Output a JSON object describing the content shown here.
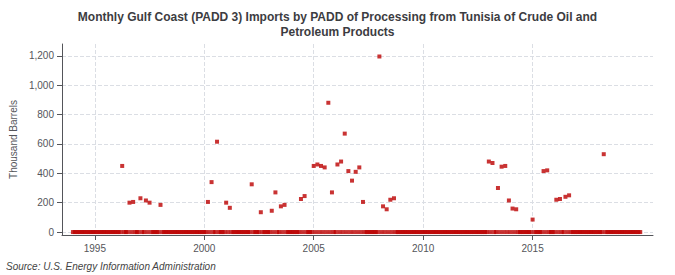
{
  "chart_data": {
    "type": "scatter",
    "title": "Monthly Gulf Coast (PADD 3) Imports by PADD of Processing from Tunisia of Crude Oil and\nPetroleum Products",
    "ylabel": "Thousand Barrels",
    "annotations": [
      "Source: U.S. Energy Information Administration"
    ],
    "color": "#bb0000",
    "marker": "square",
    "grid": true,
    "xlim": [
      1993.5,
      2020.5
    ],
    "ylim": [
      -20,
      1280
    ],
    "xticks": [
      1995,
      2000,
      2005,
      2010,
      2015
    ],
    "yticks": [
      0,
      200,
      400,
      600,
      800,
      {
        "value": 1000,
        "label": "1,000"
      },
      {
        "value": 1200,
        "label": "1,200"
      }
    ],
    "x": [
      1994.0,
      1994.083,
      1994.167,
      1994.25,
      1994.333,
      1994.417,
      1994.5,
      1994.583,
      1994.667,
      1994.75,
      1994.833,
      1994.917,
      1995.0,
      1995.083,
      1995.167,
      1995.25,
      1995.333,
      1995.417,
      1995.5,
      1995.583,
      1995.667,
      1995.75,
      1995.833,
      1995.917,
      1996.0,
      1996.083,
      1996.167,
      1996.25,
      1996.333,
      1996.417,
      1996.5,
      1996.583,
      1996.667,
      1996.75,
      1996.833,
      1996.917,
      1997.0,
      1997.083,
      1997.167,
      1997.25,
      1997.333,
      1997.417,
      1997.5,
      1997.583,
      1997.667,
      1997.75,
      1997.833,
      1997.917,
      1998.0,
      1998.083,
      1998.167,
      1998.25,
      1998.333,
      1998.417,
      1998.5,
      1998.583,
      1998.667,
      1998.75,
      1998.833,
      1998.917,
      1999.0,
      1999.083,
      1999.167,
      1999.25,
      1999.333,
      1999.417,
      1999.5,
      1999.583,
      1999.667,
      1999.75,
      1999.833,
      1999.917,
      2000.0,
      2000.083,
      2000.167,
      2000.25,
      2000.333,
      2000.417,
      2000.5,
      2000.583,
      2000.667,
      2000.75,
      2000.833,
      2000.917,
      2001.0,
      2001.083,
      2001.167,
      2001.25,
      2001.333,
      2001.417,
      2001.5,
      2001.583,
      2001.667,
      2001.75,
      2001.833,
      2001.917,
      2002.0,
      2002.083,
      2002.167,
      2002.25,
      2002.333,
      2002.417,
      2002.5,
      2002.583,
      2002.667,
      2002.75,
      2002.833,
      2002.917,
      2003.0,
      2003.083,
      2003.167,
      2003.25,
      2003.333,
      2003.417,
      2003.5,
      2003.583,
      2003.667,
      2003.75,
      2003.833,
      2003.917,
      2004.0,
      2004.083,
      2004.167,
      2004.25,
      2004.333,
      2004.417,
      2004.5,
      2004.583,
      2004.667,
      2004.75,
      2004.833,
      2004.917,
      2005.0,
      2005.083,
      2005.167,
      2005.25,
      2005.333,
      2005.417,
      2005.5,
      2005.583,
      2005.667,
      2005.75,
      2005.833,
      2005.917,
      2006.0,
      2006.083,
      2006.167,
      2006.25,
      2006.333,
      2006.417,
      2006.5,
      2006.583,
      2006.667,
      2006.75,
      2006.833,
      2006.917,
      2007.0,
      2007.083,
      2007.167,
      2007.25,
      2007.333,
      2007.417,
      2007.5,
      2007.583,
      2007.667,
      2007.75,
      2007.833,
      2007.917,
      2008.0,
      2008.083,
      2008.167,
      2008.25,
      2008.333,
      2008.417,
      2008.5,
      2008.583,
      2008.667,
      2008.75,
      2008.833,
      2008.917,
      2009.0,
      2009.083,
      2009.167,
      2009.25,
      2009.333,
      2009.417,
      2009.5,
      2009.583,
      2009.667,
      2009.75,
      2009.833,
      2009.917,
      2010.0,
      2010.083,
      2010.167,
      2010.25,
      2010.333,
      2010.417,
      2010.5,
      2010.583,
      2010.667,
      2010.75,
      2010.833,
      2010.917,
      2011.0,
      2011.083,
      2011.167,
      2011.25,
      2011.333,
      2011.417,
      2011.5,
      2011.583,
      2011.667,
      2011.75,
      2011.833,
      2011.917,
      2012.0,
      2012.083,
      2012.167,
      2012.25,
      2012.333,
      2012.417,
      2012.5,
      2012.583,
      2012.667,
      2012.75,
      2012.833,
      2012.917,
      2013.0,
      2013.083,
      2013.167,
      2013.25,
      2013.333,
      2013.417,
      2013.5,
      2013.583,
      2013.667,
      2013.75,
      2013.833,
      2013.917,
      2014.0,
      2014.083,
      2014.167,
      2014.25,
      2014.333,
      2014.417,
      2014.5,
      2014.583,
      2014.667,
      2014.75,
      2014.833,
      2014.917,
      2015.0,
      2015.083,
      2015.167,
      2015.25,
      2015.333,
      2015.417,
      2015.5,
      2015.583,
      2015.667,
      2015.75,
      2015.833,
      2015.917,
      2016.0,
      2016.083,
      2016.167,
      2016.25,
      2016.333,
      2016.417,
      2016.5,
      2016.583,
      2016.667,
      2016.75,
      2016.833,
      2016.917,
      2017.0,
      2017.083,
      2017.167,
      2017.25,
      2017.333,
      2017.417,
      2017.5,
      2017.583,
      2017.667,
      2017.75,
      2017.833,
      2017.917,
      2018.0,
      2018.083,
      2018.167,
      2018.25,
      2018.333,
      2018.417,
      2018.5,
      2018.583,
      2018.667,
      2018.75,
      2018.833,
      2018.917,
      2019.0,
      2019.083,
      2019.167,
      2019.25,
      2019.333,
      2019.417,
      2019.5,
      2019.583,
      2019.667,
      2019.75,
      2019.833,
      2019.917
    ],
    "values": [
      0,
      0,
      0,
      0,
      0,
      0,
      0,
      0,
      0,
      0,
      0,
      0,
      0,
      0,
      0,
      0,
      0,
      0,
      0,
      0,
      0,
      0,
      0,
      0,
      0,
      0,
      0,
      450,
      0,
      0,
      0,
      200,
      0,
      205,
      0,
      0,
      0,
      230,
      0,
      0,
      215,
      0,
      200,
      0,
      0,
      0,
      0,
      0,
      185,
      0,
      0,
      0,
      0,
      0,
      0,
      0,
      0,
      0,
      0,
      0,
      0,
      0,
      0,
      0,
      0,
      0,
      0,
      0,
      0,
      0,
      0,
      0,
      0,
      0,
      205,
      0,
      340,
      0,
      0,
      615,
      0,
      0,
      0,
      0,
      200,
      0,
      165,
      0,
      0,
      0,
      0,
      0,
      0,
      0,
      0,
      0,
      0,
      0,
      325,
      0,
      0,
      0,
      0,
      135,
      0,
      0,
      0,
      0,
      0,
      145,
      0,
      270,
      0,
      0,
      175,
      0,
      185,
      0,
      0,
      0,
      0,
      0,
      0,
      0,
      0,
      225,
      0,
      245,
      0,
      0,
      0,
      0,
      450,
      0,
      460,
      0,
      450,
      0,
      440,
      0,
      880,
      0,
      270,
      0,
      0,
      460,
      0,
      480,
      0,
      670,
      0,
      415,
      0,
      350,
      0,
      410,
      0,
      440,
      0,
      205,
      0,
      0,
      0,
      0,
      0,
      0,
      0,
      0,
      1195,
      0,
      175,
      0,
      155,
      0,
      220,
      0,
      230,
      0,
      0,
      0,
      0,
      0,
      0,
      0,
      0,
      0,
      0,
      0,
      0,
      0,
      0,
      0,
      0,
      0,
      0,
      0,
      0,
      0,
      0,
      0,
      0,
      0,
      0,
      0,
      0,
      0,
      0,
      0,
      0,
      0,
      0,
      0,
      0,
      0,
      0,
      0,
      0,
      0,
      0,
      0,
      0,
      0,
      0,
      0,
      0,
      0,
      0,
      0,
      480,
      0,
      470,
      0,
      0,
      300,
      0,
      445,
      0,
      450,
      0,
      215,
      0,
      160,
      0,
      155,
      0,
      0,
      0,
      0,
      0,
      0,
      0,
      0,
      85,
      0,
      0,
      0,
      0,
      0,
      415,
      0,
      420,
      0,
      0,
      0,
      0,
      220,
      0,
      225,
      0,
      0,
      240,
      0,
      250,
      0,
      0,
      0,
      0,
      0,
      0,
      0,
      0,
      0,
      0,
      0,
      0,
      0,
      0,
      0,
      0,
      0,
      0,
      530,
      0,
      0,
      0,
      0,
      0,
      0,
      0,
      0,
      0,
      0,
      0,
      0,
      0,
      0,
      0,
      0,
      0,
      0,
      0,
      0
    ]
  }
}
